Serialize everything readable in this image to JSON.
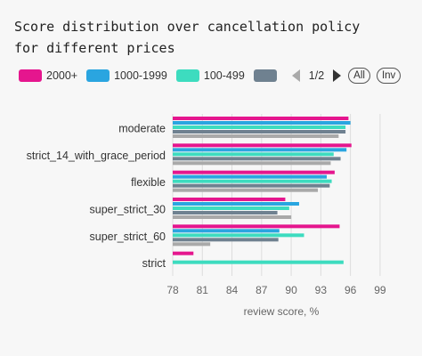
{
  "title": "Score distribution over cancellation policy\nfor different prices",
  "legend": {
    "pager_text": "1/2",
    "all_label": "All",
    "inv_label": "Inv"
  },
  "chart_data": {
    "type": "bar",
    "orientation": "horizontal",
    "title": "Score distribution over cancellation policy for different prices",
    "xlabel": "review score, %",
    "ylabel": "",
    "xlim": [
      78,
      100
    ],
    "xticks": [
      78,
      81,
      84,
      87,
      90,
      93,
      96,
      99
    ],
    "grid": true,
    "legend_position": "top-left",
    "categories": [
      "moderate",
      "strict_14_with_grace_period",
      "flexible",
      "super_strict_30",
      "super_strict_60",
      "strict"
    ],
    "series": [
      {
        "name": "2000+",
        "color": "#e5168e",
        "values": [
          95.8,
          96.1,
          94.4,
          89.4,
          94.9,
          80.1
        ]
      },
      {
        "name": "1000-1999",
        "color": "#2aa5e0",
        "values": [
          96.0,
          95.6,
          93.6,
          90.8,
          88.8,
          null
        ]
      },
      {
        "name": "100-499",
        "color": "#3ddcbf",
        "values": [
          95.5,
          94.3,
          94.1,
          89.8,
          91.3,
          95.3
        ]
      },
      {
        "name": "",
        "color": "#6f8190",
        "values": [
          95.5,
          95.0,
          93.9,
          88.6,
          88.7,
          null
        ]
      },
      {
        "name": "",
        "color": "#a9a9a9",
        "values": [
          94.8,
          94.0,
          92.7,
          90.0,
          81.8,
          null
        ]
      }
    ]
  }
}
